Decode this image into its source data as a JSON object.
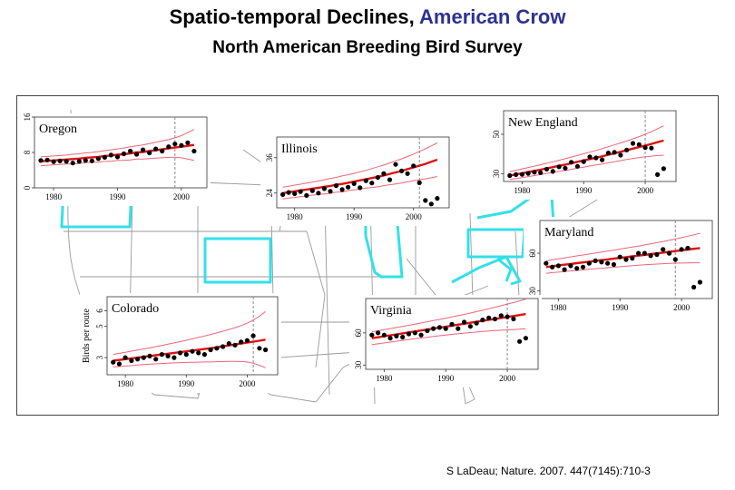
{
  "title": {
    "prefix": "Spatio-temporal Declines, ",
    "accent": "American Crow",
    "accent_color": "#2e3192"
  },
  "subtitle": "North American Breeding Bird Survey",
  "credit": "S LaDeau; Nature. 2007. 447(7145):710-3",
  "colors": {
    "highlight": "#33e0e8",
    "trend": "#dd1111",
    "ci": "#ee6677",
    "points": "#000000",
    "divider": "#888888"
  },
  "chart_data": [
    {
      "type": "line",
      "title": "Oregon",
      "xlabel": "",
      "ylabel": "",
      "x_ticks": [
        "1980",
        "1990",
        "2000"
      ],
      "y_ticks": [
        "0",
        "8",
        "16"
      ],
      "xlim": [
        1977,
        2004
      ],
      "ylim": [
        0,
        16
      ],
      "divider_year": 1999,
      "years": [
        1978,
        1979,
        1980,
        1981,
        1982,
        1983,
        1984,
        1985,
        1986,
        1987,
        1988,
        1989,
        1990,
        1991,
        1992,
        1993,
        1994,
        1995,
        1996,
        1997,
        1998,
        1999,
        2000,
        2001,
        2002
      ],
      "observed": [
        6.2,
        6.3,
        5.9,
        6.1,
        6.0,
        5.6,
        6.0,
        6.2,
        6.1,
        6.6,
        6.9,
        7.4,
        7.0,
        7.7,
        8.3,
        7.6,
        8.6,
        7.9,
        8.8,
        8.3,
        9.3,
        9.9,
        9.6,
        10.2,
        8.3
      ],
      "trend": [
        6.0,
        6.1,
        6.2,
        6.3,
        6.4,
        6.5,
        6.6,
        6.8,
        6.9,
        7.0,
        7.2,
        7.3,
        7.5,
        7.6,
        7.8,
        8.0,
        8.1,
        8.3,
        8.5,
        8.7,
        8.9,
        9.1,
        9.3,
        9.5,
        9.7
      ],
      "upper": [
        7.0,
        7.1,
        7.2,
        7.3,
        7.4,
        7.6,
        7.7,
        7.9,
        8.0,
        8.2,
        8.4,
        8.6,
        8.8,
        9.0,
        9.3,
        9.5,
        9.7,
        10.0,
        10.3,
        10.6,
        10.9,
        11.3,
        11.8,
        12.5,
        13.2
      ],
      "lower": [
        5.0,
        5.1,
        5.2,
        5.3,
        5.4,
        5.4,
        5.5,
        5.7,
        5.8,
        5.8,
        6.0,
        6.0,
        6.2,
        6.2,
        6.3,
        6.5,
        6.5,
        6.6,
        6.7,
        6.8,
        6.9,
        6.9,
        6.8,
        6.5,
        6.2
      ]
    },
    {
      "type": "line",
      "title": "Illinois",
      "xlabel": "",
      "ylabel": "",
      "x_ticks": [
        "1980",
        "1990",
        "2000"
      ],
      "y_ticks": [
        "24",
        "36"
      ],
      "xlim": [
        1977,
        2006
      ],
      "ylim": [
        19,
        43
      ],
      "divider_year": 2001,
      "years": [
        1978,
        1979,
        1980,
        1981,
        1982,
        1983,
        1984,
        1985,
        1986,
        1987,
        1988,
        1989,
        1990,
        1991,
        1992,
        1993,
        1994,
        1995,
        1996,
        1997,
        1998,
        1999,
        2000,
        2001,
        2002,
        2003,
        2004
      ],
      "observed": [
        23.5,
        24.2,
        23.8,
        24.5,
        23.2,
        24.8,
        24.0,
        25.5,
        24.6,
        26.5,
        25.2,
        26.0,
        27.2,
        25.8,
        28.2,
        27.4,
        29.3,
        30.6,
        28.5,
        33.7,
        31.5,
        30.6,
        33.2,
        27.5,
        21.5,
        20.3,
        22.2
      ],
      "trend": [
        24.0,
        24.3,
        24.6,
        24.9,
        25.2,
        25.5,
        25.8,
        26.1,
        26.4,
        26.8,
        27.1,
        27.5,
        27.9,
        28.3,
        28.7,
        29.1,
        29.5,
        30.0,
        30.5,
        31.0,
        31.5,
        32.1,
        32.7,
        33.3,
        33.9,
        34.6,
        35.3
      ],
      "upper": [
        26.0,
        26.3,
        26.7,
        27.0,
        27.4,
        27.7,
        28.1,
        28.5,
        28.9,
        29.3,
        29.8,
        30.2,
        30.7,
        31.2,
        31.7,
        32.3,
        32.9,
        33.5,
        34.2,
        34.9,
        35.6,
        36.4,
        37.2,
        38.1,
        39.0,
        40.0,
        41.0
      ],
      "lower": [
        22.0,
        22.3,
        22.5,
        22.8,
        23.0,
        23.3,
        23.5,
        23.7,
        23.9,
        24.3,
        24.4,
        24.8,
        25.1,
        25.4,
        25.7,
        25.9,
        26.1,
        26.5,
        26.8,
        27.1,
        27.4,
        27.8,
        28.2,
        28.5,
        28.8,
        29.2,
        29.6
      ]
    },
    {
      "type": "line",
      "title": "New England",
      "xlabel": "",
      "ylabel": "",
      "x_ticks": [
        "1980",
        "1990",
        "2000"
      ],
      "y_ticks": [
        "30",
        "50"
      ],
      "xlim": [
        1977,
        2005
      ],
      "ylim": [
        26,
        62
      ],
      "divider_year": 2000,
      "years": [
        1978,
        1979,
        1980,
        1981,
        1982,
        1983,
        1984,
        1985,
        1986,
        1987,
        1988,
        1989,
        1990,
        1991,
        1992,
        1993,
        1994,
        1995,
        1996,
        1997,
        1998,
        1999,
        2000,
        2001,
        2002,
        2003
      ],
      "observed": [
        29.0,
        29.5,
        29.6,
        30.1,
        30.7,
        30.5,
        32.3,
        31.1,
        33.5,
        32.8,
        35.8,
        33.7,
        36.1,
        38.5,
        38.0,
        37.0,
        40.5,
        40.8,
        39.4,
        42.0,
        45.4,
        44.8,
        43.2,
        43.0,
        29.5,
        32.5
      ],
      "trend": [
        29.0,
        29.6,
        30.2,
        30.8,
        31.4,
        32.0,
        32.7,
        33.3,
        34.0,
        34.6,
        35.3,
        36.0,
        36.7,
        37.4,
        38.1,
        38.8,
        39.6,
        40.3,
        41.1,
        41.9,
        42.7,
        43.5,
        44.3,
        45.1,
        46.0,
        46.8
      ],
      "upper": [
        31.0,
        31.7,
        32.4,
        33.1,
        33.8,
        34.5,
        35.3,
        36.0,
        36.8,
        37.6,
        38.4,
        39.2,
        40.1,
        40.9,
        41.8,
        42.7,
        43.7,
        44.6,
        45.6,
        46.6,
        47.7,
        48.8,
        50.0,
        51.3,
        52.8,
        54.3
      ],
      "lower": [
        27.0,
        27.5,
        28.0,
        28.5,
        29.0,
        29.5,
        30.1,
        30.6,
        31.2,
        31.6,
        32.2,
        32.8,
        33.3,
        33.9,
        34.4,
        34.9,
        35.5,
        36.0,
        36.6,
        37.2,
        37.7,
        38.2,
        38.6,
        38.9,
        39.2,
        39.3
      ]
    },
    {
      "type": "line",
      "title": "Maryland",
      "xlabel": "",
      "ylabel": "",
      "x_ticks": [
        "1980",
        "1990",
        "2000"
      ],
      "y_ticks": [
        "30",
        "60"
      ],
      "xlim": [
        1977,
        2005
      ],
      "ylim": [
        24,
        86
      ],
      "divider_year": 1999,
      "years": [
        1978,
        1979,
        1980,
        1981,
        1982,
        1983,
        1984,
        1985,
        1986,
        1987,
        1988,
        1989,
        1990,
        1991,
        1992,
        1993,
        1994,
        1995,
        1996,
        1997,
        1998,
        1999,
        2000,
        2001,
        2002,
        2003
      ],
      "observed": [
        52,
        49,
        50,
        47,
        50,
        48,
        49,
        52,
        54,
        53,
        52,
        51,
        57,
        55,
        56,
        60,
        60,
        58,
        59,
        63,
        60,
        55,
        63,
        64,
        33,
        37
      ],
      "trend": [
        49.0,
        49.7,
        50.3,
        50.9,
        51.5,
        52.1,
        52.7,
        53.3,
        53.9,
        54.5,
        55.1,
        55.7,
        56.3,
        56.9,
        57.5,
        58.1,
        58.7,
        59.3,
        59.9,
        60.5,
        61.1,
        61.7,
        62.3,
        62.9,
        63.5,
        64.1
      ],
      "upper": [
        54.0,
        54.8,
        55.6,
        56.3,
        57.1,
        57.9,
        58.6,
        59.4,
        60.1,
        60.9,
        61.7,
        62.5,
        63.3,
        64.1,
        64.9,
        65.7,
        66.6,
        67.5,
        68.4,
        69.3,
        70.3,
        71.3,
        72.4,
        73.5,
        74.6,
        75.8
      ],
      "lower": [
        44.0,
        44.6,
        45.0,
        45.5,
        45.9,
        46.3,
        46.8,
        47.2,
        47.7,
        48.1,
        48.5,
        48.9,
        49.3,
        49.7,
        50.1,
        50.5,
        50.8,
        51.1,
        51.4,
        51.7,
        51.9,
        52.1,
        52.2,
        52.3,
        52.4,
        52.4
      ]
    },
    {
      "type": "line",
      "title": "Colorado",
      "xlabel": "",
      "ylabel": "Birds per route",
      "x_ticks": [
        "1980",
        "1990",
        "2000"
      ],
      "y_ticks": [
        "3",
        "5",
        "6"
      ],
      "xlim": [
        1977,
        2005
      ],
      "ylim": [
        1.9,
        6.9
      ],
      "divider_year": 2001,
      "years": [
        1978,
        1979,
        1980,
        1981,
        1982,
        1983,
        1984,
        1985,
        1986,
        1987,
        1988,
        1989,
        1990,
        1991,
        1992,
        1993,
        1994,
        1995,
        1996,
        1997,
        1998,
        1999,
        2000,
        2001,
        2002,
        2003
      ],
      "observed": [
        2.7,
        2.6,
        3.0,
        2.8,
        2.9,
        3.0,
        3.1,
        2.9,
        3.2,
        3.1,
        3.0,
        3.3,
        3.2,
        3.4,
        3.3,
        3.2,
        3.5,
        3.6,
        3.7,
        3.9,
        3.8,
        4.0,
        4.1,
        4.4,
        3.6,
        3.5
      ],
      "trend": [
        2.8,
        2.85,
        2.9,
        2.95,
        3.0,
        3.05,
        3.1,
        3.15,
        3.2,
        3.25,
        3.3,
        3.35,
        3.4,
        3.45,
        3.5,
        3.55,
        3.6,
        3.66,
        3.72,
        3.78,
        3.84,
        3.9,
        3.96,
        4.02,
        4.08,
        4.15
      ],
      "upper": [
        3.2,
        3.27,
        3.34,
        3.41,
        3.48,
        3.55,
        3.62,
        3.7,
        3.78,
        3.86,
        3.94,
        4.02,
        4.11,
        4.2,
        4.29,
        4.38,
        4.48,
        4.58,
        4.69,
        4.8,
        4.92,
        5.05,
        5.2,
        5.4,
        5.65,
        5.95
      ],
      "lower": [
        2.4,
        2.43,
        2.46,
        2.49,
        2.52,
        2.55,
        2.58,
        2.6,
        2.62,
        2.64,
        2.66,
        2.68,
        2.69,
        2.7,
        2.71,
        2.72,
        2.72,
        2.74,
        2.75,
        2.76,
        2.76,
        2.75,
        2.72,
        2.64,
        2.51,
        2.35
      ]
    },
    {
      "type": "line",
      "title": "Virginia",
      "xlabel": "",
      "ylabel": "",
      "x_ticks": [
        "1980",
        "1990",
        "2000"
      ],
      "y_ticks": [
        "30",
        "60"
      ],
      "xlim": [
        1977,
        2005
      ],
      "ylim": [
        26,
        92
      ],
      "divider_year": 2000,
      "years": [
        1978,
        1979,
        1980,
        1981,
        1982,
        1983,
        1984,
        1985,
        1986,
        1987,
        1988,
        1989,
        1990,
        1991,
        1992,
        1993,
        1994,
        1995,
        1996,
        1997,
        1998,
        1999,
        2000,
        2001,
        2002,
        2003
      ],
      "observed": [
        58,
        60,
        58,
        55,
        57,
        56,
        59,
        60,
        58,
        62,
        64,
        65,
        64,
        68,
        64,
        70,
        66,
        69,
        72,
        74,
        73,
        76,
        75,
        73,
        52,
        55
      ],
      "trend": [
        55,
        55.9,
        56.8,
        57.7,
        58.6,
        59.5,
        60.4,
        61.3,
        62.2,
        63.1,
        64.0,
        64.9,
        65.8,
        66.7,
        67.6,
        68.5,
        69.4,
        70.3,
        71.2,
        72.1,
        73.0,
        73.9,
        74.8,
        75.7,
        76.6,
        77.5
      ],
      "upper": [
        61,
        62.0,
        63.0,
        64.0,
        65.0,
        66.0,
        67.0,
        68.1,
        69.2,
        70.3,
        71.4,
        72.5,
        73.6,
        74.8,
        76.0,
        77.2,
        78.5,
        79.8,
        81.1,
        82.5,
        83.9,
        85.3,
        86.8,
        88.3,
        89.8,
        91.3
      ],
      "lower": [
        49,
        49.8,
        50.6,
        51.4,
        52.2,
        53.0,
        53.8,
        54.5,
        55.2,
        55.9,
        56.6,
        57.3,
        58.0,
        58.6,
        59.2,
        59.8,
        60.3,
        60.8,
        61.3,
        61.7,
        62.1,
        62.5,
        62.8,
        63.1,
        63.4,
        63.7
      ]
    }
  ]
}
